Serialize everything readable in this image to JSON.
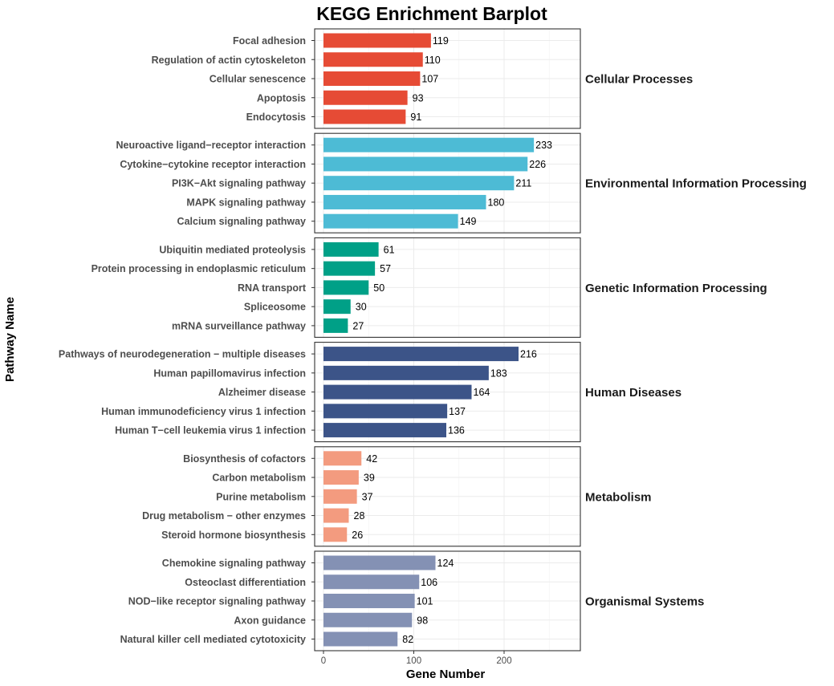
{
  "chart_data": {
    "type": "bar",
    "orientation": "horizontal",
    "title": "KEGG Enrichment Barplot",
    "xlabel": "Gene Number",
    "ylabel": "Pathway Name",
    "xlim": [
      -10,
      285
    ],
    "xticks": [
      0,
      100,
      200
    ],
    "grid": true,
    "facets": [
      {
        "name": "Cellular Processes",
        "color": "#E64B35",
        "categories": [
          "Focal adhesion",
          "Regulation of actin cytoskeleton",
          "Cellular senescence",
          "Apoptosis",
          "Endocytosis"
        ],
        "values": [
          119,
          110,
          107,
          93,
          91
        ]
      },
      {
        "name": "Environmental Information Processing",
        "color": "#4DBBD5",
        "categories": [
          "Neuroactive ligand−receptor interaction",
          "Cytokine−cytokine receptor interaction",
          "PI3K−Akt signaling pathway",
          "MAPK signaling pathway",
          "Calcium signaling pathway"
        ],
        "values": [
          233,
          226,
          211,
          180,
          149
        ]
      },
      {
        "name": "Genetic Information Processing",
        "color": "#00A087",
        "categories": [
          "Ubiquitin mediated proteolysis",
          "Protein processing in endoplasmic reticulum",
          "RNA transport",
          "Spliceosome",
          "mRNA surveillance pathway"
        ],
        "values": [
          61,
          57,
          50,
          30,
          27
        ]
      },
      {
        "name": "Human Diseases",
        "color": "#3C5488",
        "categories": [
          "Pathways of neurodegeneration − multiple diseases",
          "Human papillomavirus infection",
          "Alzheimer disease",
          "Human immunodeficiency virus 1 infection",
          "Human T−cell leukemia virus 1 infection"
        ],
        "values": [
          216,
          183,
          164,
          137,
          136
        ]
      },
      {
        "name": "Metabolism",
        "color": "#F39B7F",
        "categories": [
          "Biosynthesis of cofactors",
          "Carbon metabolism",
          "Purine metabolism",
          "Drug metabolism − other enzymes",
          "Steroid hormone biosynthesis"
        ],
        "values": [
          42,
          39,
          37,
          28,
          26
        ]
      },
      {
        "name": "Organismal Systems",
        "color": "#8491B4",
        "categories": [
          "Chemokine signaling pathway",
          "Osteoclast differentiation",
          "NOD−like receptor signaling pathway",
          "Axon guidance",
          "Natural killer cell mediated cytotoxicity"
        ],
        "values": [
          124,
          106,
          101,
          98,
          82
        ]
      }
    ]
  }
}
